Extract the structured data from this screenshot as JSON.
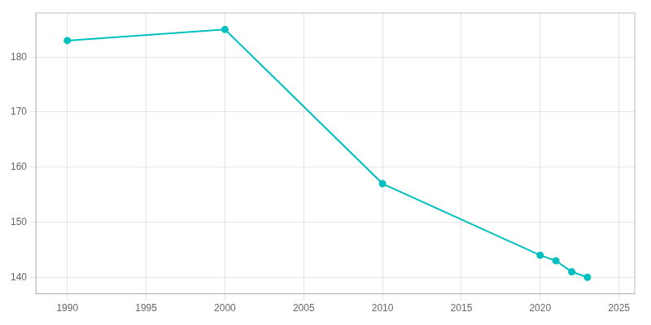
{
  "chart_data": {
    "type": "line",
    "x": [
      1990,
      2000,
      2010,
      2020,
      2021,
      2022,
      2023
    ],
    "values": [
      183,
      185,
      157,
      144,
      143,
      141,
      140
    ],
    "color": "#00BFBF",
    "marker": "circle",
    "line_style": "solid",
    "xlim": [
      1988,
      2026
    ],
    "ylim": [
      137,
      188
    ],
    "xticks": [
      1990,
      1995,
      2000,
      2005,
      2010,
      2015,
      2020,
      2025
    ],
    "yticks": [
      140,
      150,
      160,
      170,
      180
    ],
    "grid": true
  }
}
